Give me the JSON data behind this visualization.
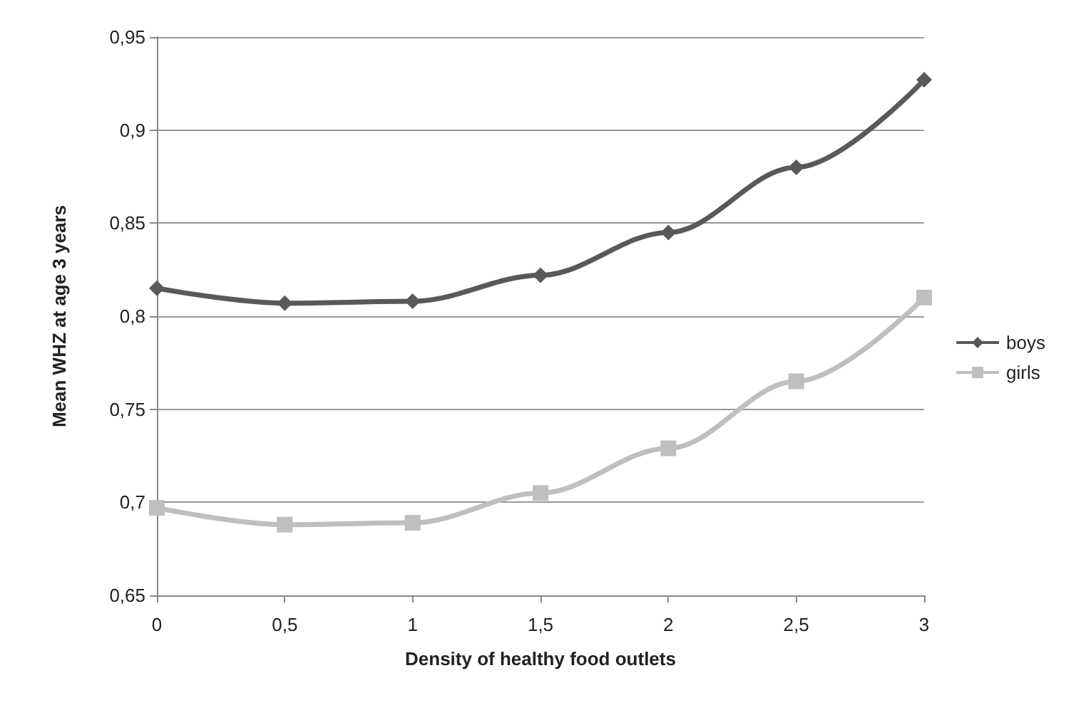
{
  "chart_data": {
    "type": "line",
    "xlabel": "Density of healthy food outlets",
    "ylabel": "Mean WHZ at age 3 years",
    "categories": [
      "0",
      "0,5",
      "1",
      "1,5",
      "2",
      "2,5",
      "3"
    ],
    "series": [
      {
        "name": "boys",
        "color": "#595959",
        "marker": "diamond",
        "values": [
          0.815,
          0.807,
          0.808,
          0.822,
          0.845,
          0.88,
          0.927
        ]
      },
      {
        "name": "girls",
        "color": "#bfbfbf",
        "marker": "square",
        "values": [
          0.697,
          0.688,
          0.689,
          0.705,
          0.729,
          0.765,
          0.81
        ]
      }
    ],
    "ylim": [
      0.65,
      0.95
    ],
    "yticks": [
      {
        "value": 0.65,
        "label": "0,65"
      },
      {
        "value": 0.7,
        "label": "0,7"
      },
      {
        "value": 0.75,
        "label": "0,75"
      },
      {
        "value": 0.8,
        "label": "0,8"
      },
      {
        "value": 0.85,
        "label": "0,85"
      },
      {
        "value": 0.9,
        "label": "0,9"
      },
      {
        "value": 0.95,
        "label": "0,95"
      }
    ],
    "grid": "y",
    "legend": "right"
  }
}
